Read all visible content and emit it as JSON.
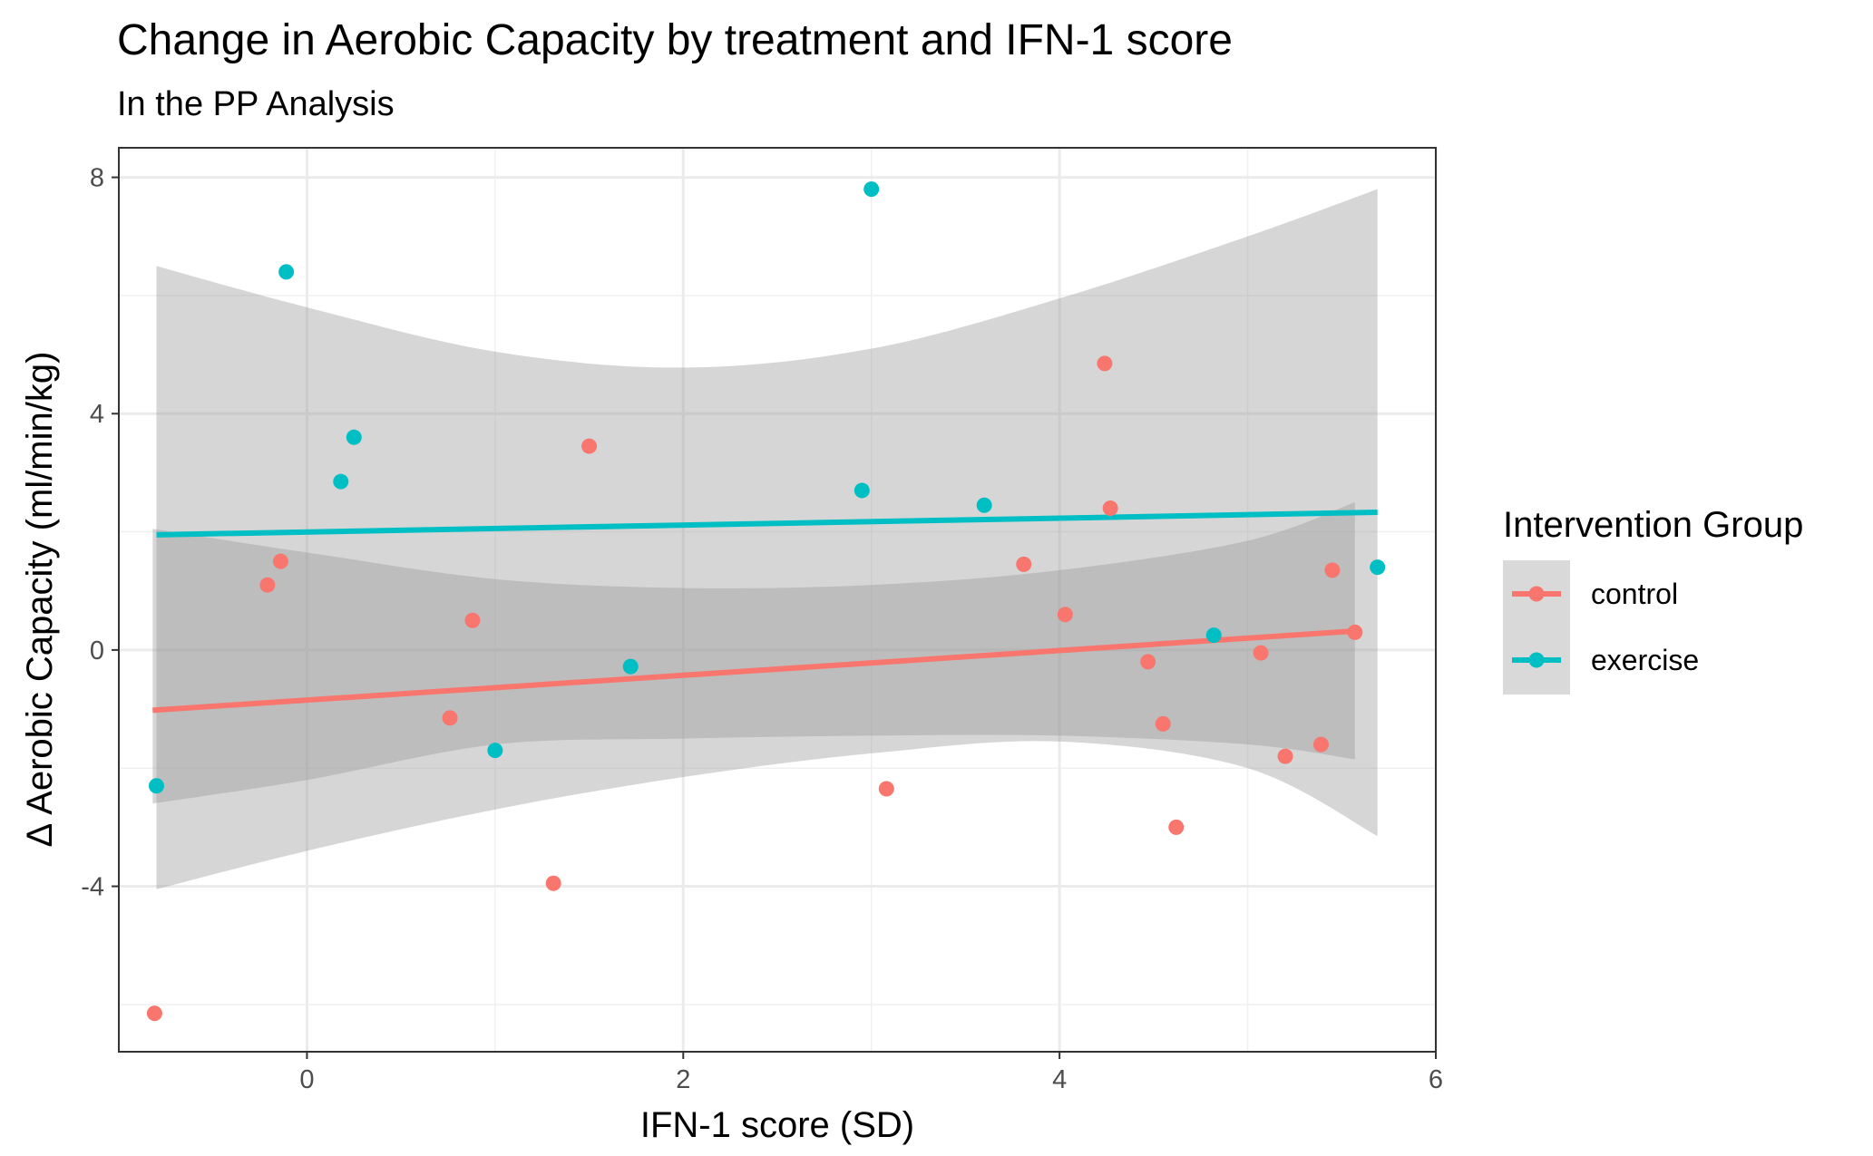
{
  "chart_data": {
    "type": "scatter",
    "title": "Change in Aerobic Capacity by treatment and IFN-1 score",
    "subtitle": "In the PP Analysis",
    "xlabel": "IFN-1 score (SD)",
    "ylabel": "Δ Aerobic Capacity (ml/min/kg)",
    "xlim": [
      -1.0,
      6.0
    ],
    "ylim": [
      -6.8,
      8.5
    ],
    "x_ticks": [
      0,
      2,
      4,
      6
    ],
    "y_ticks": [
      -4,
      0,
      4,
      8
    ],
    "x_tick_labels": [
      "0",
      "2",
      "4",
      "6"
    ],
    "y_tick_labels": [
      "-4",
      "0",
      "4",
      "8"
    ],
    "grid": true,
    "legend": {
      "title": "Intervention Group",
      "position": "right"
    },
    "series": [
      {
        "name": "control",
        "color": "#F8766D",
        "points": [
          {
            "x": -0.81,
            "y": -6.15
          },
          {
            "x": -0.21,
            "y": 1.1
          },
          {
            "x": -0.14,
            "y": 1.5
          },
          {
            "x": 0.76,
            "y": -1.15
          },
          {
            "x": 0.88,
            "y": 0.5
          },
          {
            "x": 1.31,
            "y": -3.95
          },
          {
            "x": 1.5,
            "y": 3.45
          },
          {
            "x": 3.08,
            "y": -2.35
          },
          {
            "x": 3.81,
            "y": 1.45
          },
          {
            "x": 4.03,
            "y": 0.6
          },
          {
            "x": 4.24,
            "y": 4.85
          },
          {
            "x": 4.27,
            "y": 2.4
          },
          {
            "x": 4.47,
            "y": -0.2
          },
          {
            "x": 4.55,
            "y": -1.25
          },
          {
            "x": 4.62,
            "y": -3.0
          },
          {
            "x": 5.07,
            "y": -0.05
          },
          {
            "x": 5.2,
            "y": -1.8
          },
          {
            "x": 5.39,
            "y": -1.6
          },
          {
            "x": 5.45,
            "y": 1.35
          },
          {
            "x": 5.57,
            "y": 0.3
          }
        ],
        "fit": {
          "x": [
            -0.82,
            5.57
          ],
          "y": [
            -1.02,
            0.32
          ]
        },
        "ci_upper": [
          {
            "x": -0.82,
            "y": 2.05
          },
          {
            "x": 0.0,
            "y": 1.65
          },
          {
            "x": 1.0,
            "y": 1.2
          },
          {
            "x": 2.0,
            "y": 1.05
          },
          {
            "x": 3.0,
            "y": 1.1
          },
          {
            "x": 4.0,
            "y": 1.35
          },
          {
            "x": 5.0,
            "y": 1.85
          },
          {
            "x": 5.57,
            "y": 2.5
          }
        ],
        "ci_lower": [
          {
            "x": -0.82,
            "y": -2.6
          },
          {
            "x": 0.0,
            "y": -2.2
          },
          {
            "x": 1.0,
            "y": -1.6
          },
          {
            "x": 2.0,
            "y": -1.5
          },
          {
            "x": 3.0,
            "y": -1.45
          },
          {
            "x": 4.0,
            "y": -1.45
          },
          {
            "x": 5.0,
            "y": -1.6
          },
          {
            "x": 5.57,
            "y": -1.85
          }
        ]
      },
      {
        "name": "exercise",
        "color": "#00BFC4",
        "points": [
          {
            "x": -0.8,
            "y": -2.3
          },
          {
            "x": -0.11,
            "y": 6.4
          },
          {
            "x": 0.18,
            "y": 2.85
          },
          {
            "x": 0.25,
            "y": 3.6
          },
          {
            "x": 1.0,
            "y": -1.7
          },
          {
            "x": 1.72,
            "y": -0.28
          },
          {
            "x": 2.95,
            "y": 2.7
          },
          {
            "x": 3.0,
            "y": 7.8
          },
          {
            "x": 3.6,
            "y": 2.45
          },
          {
            "x": 4.82,
            "y": 0.25
          },
          {
            "x": 5.69,
            "y": 1.4
          }
        ],
        "fit": {
          "x": [
            -0.8,
            5.69
          ],
          "y": [
            1.95,
            2.33
          ]
        },
        "ci_upper": [
          {
            "x": -0.8,
            "y": 6.5
          },
          {
            "x": 0.0,
            "y": 5.8
          },
          {
            "x": 1.0,
            "y": 5.05
          },
          {
            "x": 2.0,
            "y": 4.78
          },
          {
            "x": 3.0,
            "y": 5.1
          },
          {
            "x": 4.0,
            "y": 5.95
          },
          {
            "x": 5.0,
            "y": 7.0
          },
          {
            "x": 5.69,
            "y": 7.8
          }
        ],
        "ci_lower": [
          {
            "x": -0.8,
            "y": -4.05
          },
          {
            "x": 0.0,
            "y": -3.4
          },
          {
            "x": 1.0,
            "y": -2.7
          },
          {
            "x": 2.0,
            "y": -2.15
          },
          {
            "x": 3.0,
            "y": -1.75
          },
          {
            "x": 4.0,
            "y": -1.55
          },
          {
            "x": 5.0,
            "y": -2.0
          },
          {
            "x": 5.69,
            "y": -3.15
          }
        ]
      }
    ]
  }
}
